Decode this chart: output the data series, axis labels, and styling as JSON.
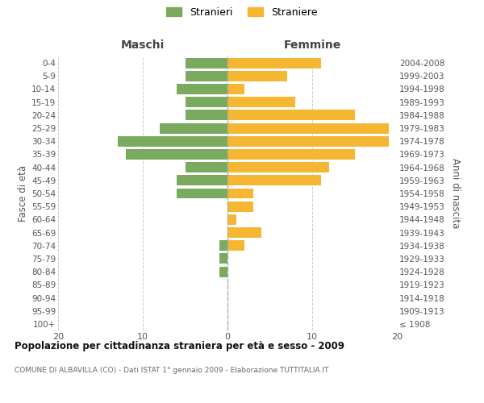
{
  "age_groups": [
    "100+",
    "95-99",
    "90-94",
    "85-89",
    "80-84",
    "75-79",
    "70-74",
    "65-69",
    "60-64",
    "55-59",
    "50-54",
    "45-49",
    "40-44",
    "35-39",
    "30-34",
    "25-29",
    "20-24",
    "15-19",
    "10-14",
    "5-9",
    "0-4"
  ],
  "birth_years": [
    "≤ 1908",
    "1909-1913",
    "1914-1918",
    "1919-1923",
    "1924-1928",
    "1929-1933",
    "1934-1938",
    "1939-1943",
    "1944-1948",
    "1949-1953",
    "1954-1958",
    "1959-1963",
    "1964-1968",
    "1969-1973",
    "1974-1978",
    "1979-1983",
    "1984-1988",
    "1989-1993",
    "1994-1998",
    "1999-2003",
    "2004-2008"
  ],
  "maschi": [
    0,
    0,
    0,
    0,
    1,
    1,
    1,
    0,
    0,
    0,
    6,
    6,
    5,
    12,
    13,
    8,
    5,
    5,
    6,
    5,
    5
  ],
  "femmine": [
    0,
    0,
    0,
    0,
    0,
    0,
    2,
    4,
    1,
    3,
    3,
    11,
    12,
    15,
    19,
    19,
    15,
    8,
    2,
    7,
    11
  ],
  "maschi_color": "#7aaa5e",
  "femmine_color": "#f5b731",
  "background_color": "#ffffff",
  "grid_color": "#cccccc",
  "title": "Popolazione per cittadinanza straniera per età e sesso - 2009",
  "subtitle": "COMUNE DI ALBAVILLA (CO) - Dati ISTAT 1° gennaio 2009 - Elaborazione TUTTITALIA.IT",
  "label_maschi": "Maschi",
  "label_femmine": "Femmine",
  "ylabel_left": "Fasce di età",
  "ylabel_right": "Anni di nascita",
  "legend_maschi": "Stranieri",
  "legend_femmine": "Straniere",
  "xlim": 20,
  "bar_height": 0.8
}
